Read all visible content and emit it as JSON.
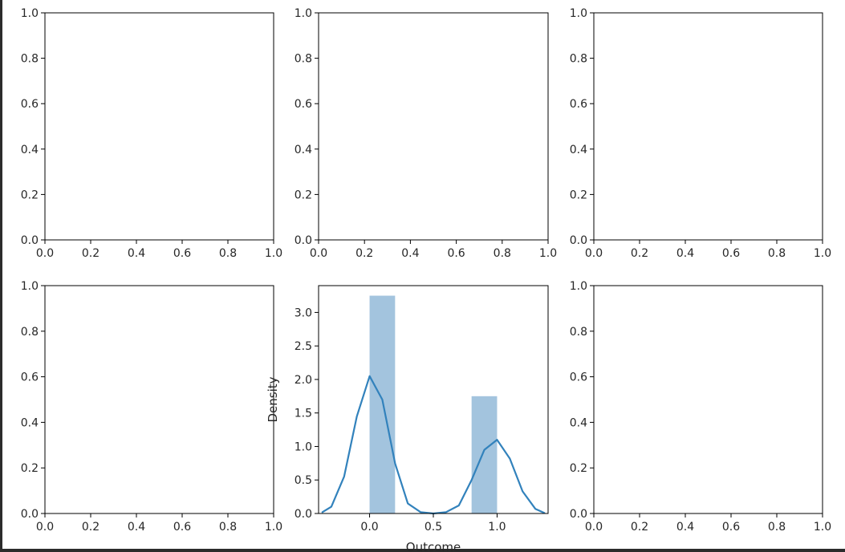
{
  "chart_data": [
    {
      "panel": "row1-col1",
      "type": "empty",
      "xlim": [
        0,
        1
      ],
      "ylim": [
        0,
        1
      ],
      "xticks": [
        "0.0",
        "0.2",
        "0.4",
        "0.6",
        "0.8",
        "1.0"
      ],
      "yticks": [
        "0.0",
        "0.2",
        "0.4",
        "0.6",
        "0.8",
        "1.0"
      ],
      "xlabel": "",
      "ylabel": "",
      "grid": false
    },
    {
      "panel": "row1-col2",
      "type": "empty",
      "xlim": [
        0,
        1
      ],
      "ylim": [
        0,
        1
      ],
      "xticks": [
        "0.0",
        "0.2",
        "0.4",
        "0.6",
        "0.8",
        "1.0"
      ],
      "yticks": [
        "0.0",
        "0.2",
        "0.4",
        "0.6",
        "0.8",
        "1.0"
      ],
      "xlabel": "",
      "ylabel": "",
      "grid": false
    },
    {
      "panel": "row1-col3",
      "type": "empty",
      "xlim": [
        0,
        1
      ],
      "ylim": [
        0,
        1
      ],
      "xticks": [
        "0.0",
        "0.2",
        "0.4",
        "0.6",
        "0.8",
        "1.0"
      ],
      "yticks": [
        "0.0",
        "0.2",
        "0.4",
        "0.6",
        "0.8",
        "1.0"
      ],
      "xlabel": "",
      "ylabel": "",
      "grid": false
    },
    {
      "panel": "row2-col1",
      "type": "empty",
      "xlim": [
        0,
        1
      ],
      "ylim": [
        0,
        1
      ],
      "xticks": [
        "0.0",
        "0.2",
        "0.4",
        "0.6",
        "0.8",
        "1.0"
      ],
      "yticks": [
        "0.0",
        "0.2",
        "0.4",
        "0.6",
        "0.8",
        "1.0"
      ],
      "xlabel": "",
      "ylabel": "",
      "grid": false
    },
    {
      "panel": "row2-col2",
      "type": "bar",
      "xlim": [
        -0.4,
        1.4
      ],
      "ylim": [
        0,
        3.4
      ],
      "xticks": [
        "0.0",
        "0.5",
        "1.0"
      ],
      "yticks": [
        "0.0",
        "0.5",
        "1.0",
        "1.5",
        "2.0",
        "2.5",
        "3.0"
      ],
      "xlabel": "Outcome",
      "ylabel": "Density",
      "grid": false,
      "bar_color": "#a3c4de",
      "bars": [
        {
          "x0": 0.0,
          "x1": 0.2,
          "value": 3.25
        },
        {
          "x0": 0.8,
          "x1": 1.0,
          "value": 1.75
        }
      ],
      "kde": {
        "color": "#3282bc",
        "points": [
          [
            -0.37,
            0.02
          ],
          [
            -0.3,
            0.1
          ],
          [
            -0.2,
            0.55
          ],
          [
            -0.1,
            1.45
          ],
          [
            0.0,
            2.05
          ],
          [
            0.1,
            1.7
          ],
          [
            0.2,
            0.75
          ],
          [
            0.3,
            0.15
          ],
          [
            0.4,
            0.02
          ],
          [
            0.5,
            0.0
          ],
          [
            0.6,
            0.02
          ],
          [
            0.7,
            0.12
          ],
          [
            0.8,
            0.5
          ],
          [
            0.9,
            0.95
          ],
          [
            1.0,
            1.1
          ],
          [
            1.1,
            0.82
          ],
          [
            1.2,
            0.33
          ],
          [
            1.3,
            0.07
          ],
          [
            1.37,
            0.01
          ]
        ]
      }
    },
    {
      "panel": "row2-col3",
      "type": "empty",
      "xlim": [
        0,
        1
      ],
      "ylim": [
        0,
        1
      ],
      "xticks": [
        "0.0",
        "0.2",
        "0.4",
        "0.6",
        "0.8",
        "1.0"
      ],
      "yticks": [
        "0.0",
        "0.2",
        "0.4",
        "0.6",
        "0.8",
        "1.0"
      ],
      "xlabel": "",
      "ylabel": "",
      "grid": false
    }
  ]
}
